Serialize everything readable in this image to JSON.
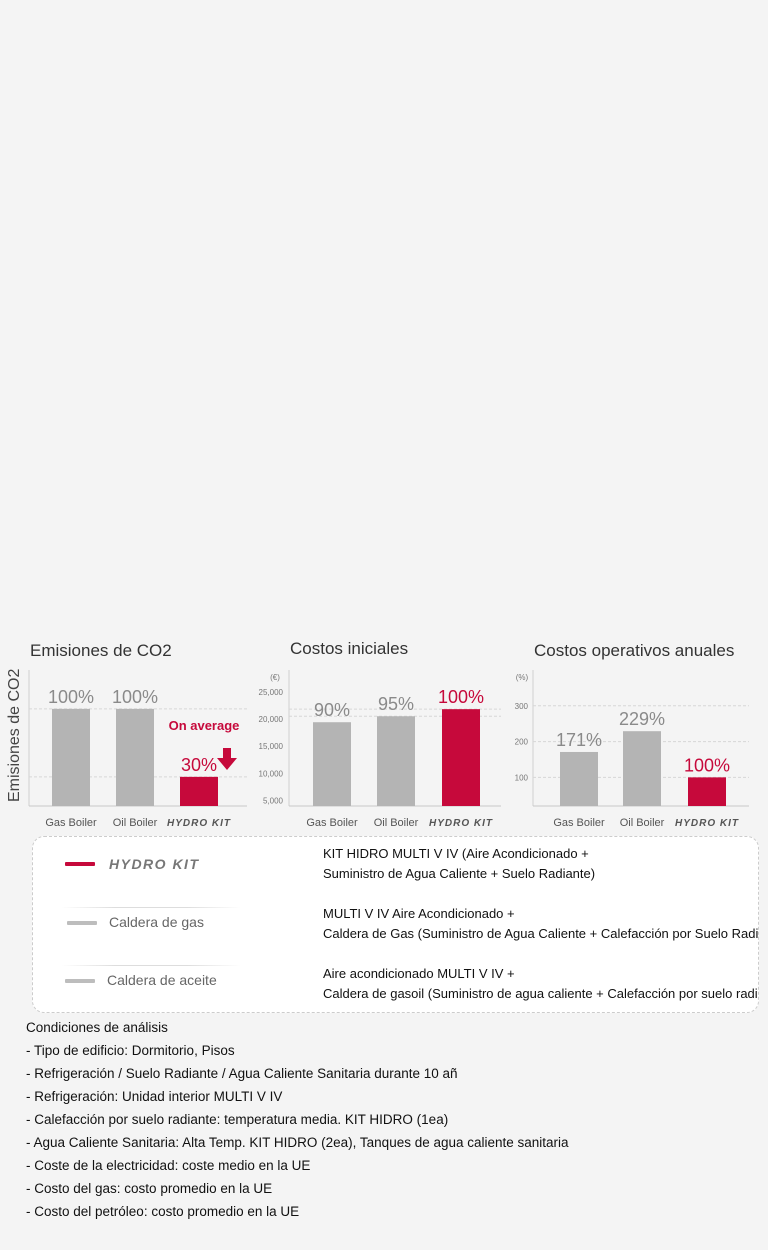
{
  "axis_title": "Emisiones de CO2",
  "chart_data": [
    {
      "type": "bar",
      "title": "Emisiones de CO2",
      "categories": [
        "Gas Boiler",
        "Oil Boiler",
        "HYDRO KIT"
      ],
      "values": [
        100,
        100,
        30
      ],
      "value_labels": [
        "100%",
        "100%",
        "30%"
      ],
      "annotation": "On average",
      "ylim": [
        0,
        140
      ],
      "ticks": [],
      "gridlines": [
        30,
        100
      ],
      "colors": [
        "#b4b4b4",
        "#b4b4b4",
        "#c6093b"
      ]
    },
    {
      "type": "bar",
      "title": "Costos iniciales",
      "unit_label": "(€)",
      "categories": [
        "Gas Boiler",
        "Oil Boiler",
        "HYDRO KIT"
      ],
      "values": [
        19400,
        20500,
        21800
      ],
      "value_labels": [
        "90%",
        "95%",
        "100%"
      ],
      "ylim": [
        4000,
        29000
      ],
      "ticks": [
        5000,
        10000,
        15000,
        20000,
        25000
      ],
      "tick_labels": [
        "5,000",
        "10,000",
        "15,000",
        "20,000",
        "25,000"
      ],
      "gridlines": [
        20500,
        21800
      ],
      "colors": [
        "#b4b4b4",
        "#b4b4b4",
        "#c6093b"
      ]
    },
    {
      "type": "bar",
      "title": "Costos operativos anuales",
      "unit_label": "(%)",
      "categories": [
        "Gas Boiler",
        "Oil Boiler",
        "HYDRO KIT"
      ],
      "values": [
        171,
        229,
        100
      ],
      "value_labels": [
        "171%",
        "229%",
        "100%"
      ],
      "ylim": [
        20,
        400
      ],
      "ticks": [
        100,
        200,
        300
      ],
      "tick_labels": [
        "100",
        "200",
        "300"
      ],
      "gridlines": [
        100,
        200,
        300
      ],
      "colors": [
        "#b4b4b4",
        "#b4b4b4",
        "#c6093b"
      ]
    }
  ],
  "legend": [
    {
      "label": "HYDRO KIT",
      "color": "#c6093b",
      "desc_lines": [
        "KIT HIDRO MULTI V IV (Aire Acondicionado +",
        "Suministro de Agua Caliente + Suelo Radiante)"
      ]
    },
    {
      "label": "Caldera de gas",
      "color": "#bdbdbd",
      "desc_lines": [
        "MULTI V IV Aire Acondicionado +",
        "Caldera de Gas (Suministro de Agua Caliente + Calefacción por Suelo Radiante)"
      ]
    },
    {
      "label": "Caldera de aceite",
      "color": "#bdbdbd",
      "desc_lines": [
        "Aire acondicionado MULTI V IV +",
        "Caldera de gasoil (Suministro de agua caliente + Calefacción por suelo radiante)"
      ]
    }
  ],
  "conditions": {
    "title": "Condiciones de análisis",
    "items": [
      "- Tipo de edificio: Dormitorio, Pisos",
      "- Refrigeración / Suelo Radiante / Agua Caliente Sanitaria durante 10 añ",
      "- Refrigeración: Unidad interior MULTI V IV",
      "- Calefacción por suelo radiante: temperatura media. KIT HIDRO (1ea)",
      "- Agua Caliente Sanitaria: Alta Temp. KIT HIDRO (2ea), Tanques de agua caliente sanitaria",
      "- Coste de la electricidad: coste medio en la UE",
      "- Costo del gas: costo promedio en la UE",
      "- Costo del petróleo: costo promedio en la UE"
    ]
  }
}
